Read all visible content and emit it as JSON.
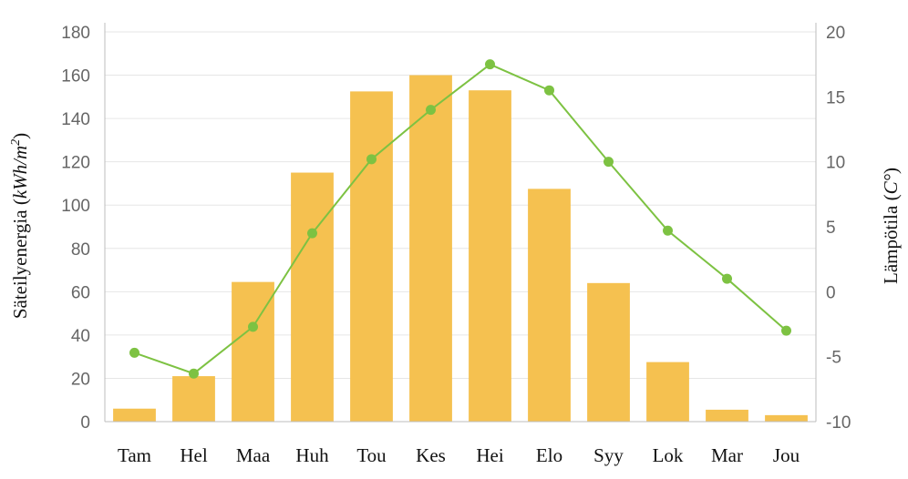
{
  "chart_data": {
    "type": "bar",
    "categories": [
      "Tam",
      "Hel",
      "Maa",
      "Huh",
      "Tou",
      "Kes",
      "Hei",
      "Elo",
      "Syy",
      "Lok",
      "Mar",
      "Jou"
    ],
    "series": [
      {
        "type": "bar",
        "axis": "left",
        "color": "#F5C150",
        "values": [
          6,
          21,
          64.5,
          115,
          152.5,
          160,
          153,
          107.5,
          64,
          27.5,
          5.5,
          3
        ]
      },
      {
        "type": "line",
        "axis": "right",
        "color": "#7DC242",
        "values": [
          -4.7,
          -6.3,
          -2.7,
          4.5,
          10.2,
          14,
          17.5,
          15.5,
          10,
          4.7,
          1,
          -3
        ]
      }
    ],
    "y_left": {
      "label_prefix": "Säteilyenergia (",
      "label_unit": "kWh/m",
      "label_sup": "2",
      "label_suffix": ")",
      "min": 0,
      "max": 180,
      "ticks": [
        "0",
        "20",
        "40",
        "60",
        "80",
        "100",
        "120",
        "140",
        "160",
        "180"
      ]
    },
    "y_right": {
      "label_prefix": "Lämpötila (",
      "label_unit": "C°",
      "label_suffix": ")",
      "min": -10,
      "max": 20,
      "ticks": [
        "-10",
        "-5",
        "0",
        "5",
        "10",
        "15",
        "20"
      ]
    },
    "grid": true,
    "legend": "none"
  }
}
